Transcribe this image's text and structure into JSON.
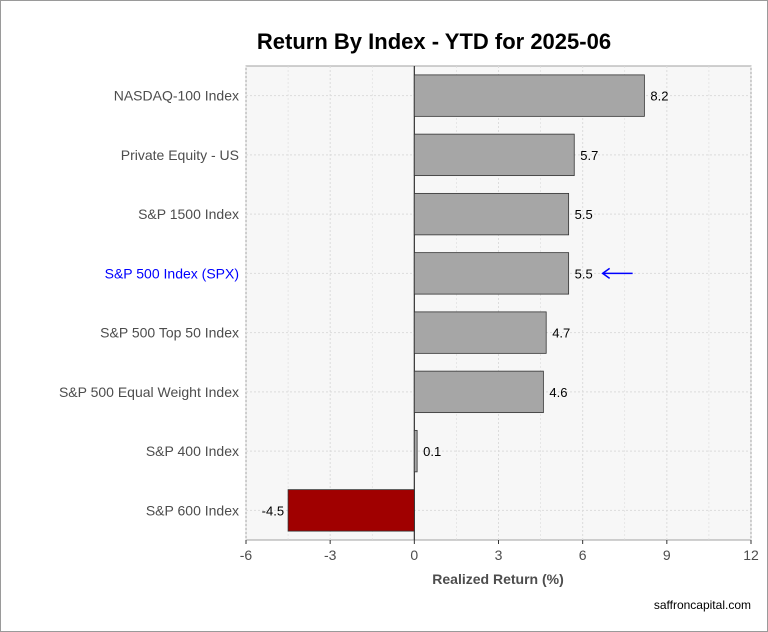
{
  "chart_data": {
    "type": "bar",
    "orientation": "horizontal",
    "title": "Return By Index - YTD for 2025-06",
    "xlabel": "Realized Return (%)",
    "ylabel": "",
    "xlim": [
      -6,
      12
    ],
    "xticks": [
      -6,
      -3,
      0,
      3,
      6,
      9,
      12
    ],
    "grid": true,
    "categories": [
      "NASDAQ-100 Index",
      "Private Equity - US",
      "S&P 1500 Index",
      "S&P 500 Index (SPX)",
      "S&P 500 Top 50 Index",
      "S&P 500 Equal Weight Index",
      "S&P 400 Index",
      "S&P 600 Index"
    ],
    "values": [
      8.2,
      5.7,
      5.5,
      5.5,
      4.7,
      4.6,
      0.1,
      -4.5
    ],
    "data_labels": [
      "8.2",
      "5.7",
      "5.5",
      "5.5",
      "4.7",
      "4.6",
      "0.1",
      "-4.5"
    ],
    "highlight_category": "S&P 500 Index (SPX)",
    "highlight_marker": "left-arrow"
  },
  "colors": {
    "positive_bar": "#a6a6a6",
    "negative_bar": "#a00000",
    "bar_outline": "#333333",
    "highlight_label": "#0000ff",
    "normal_label": "#4d4d4d",
    "panel_background": "#f7f7f7",
    "grid": "#dcdcdc",
    "zero_line": "#333333"
  },
  "credit": "saffroncapital.com"
}
